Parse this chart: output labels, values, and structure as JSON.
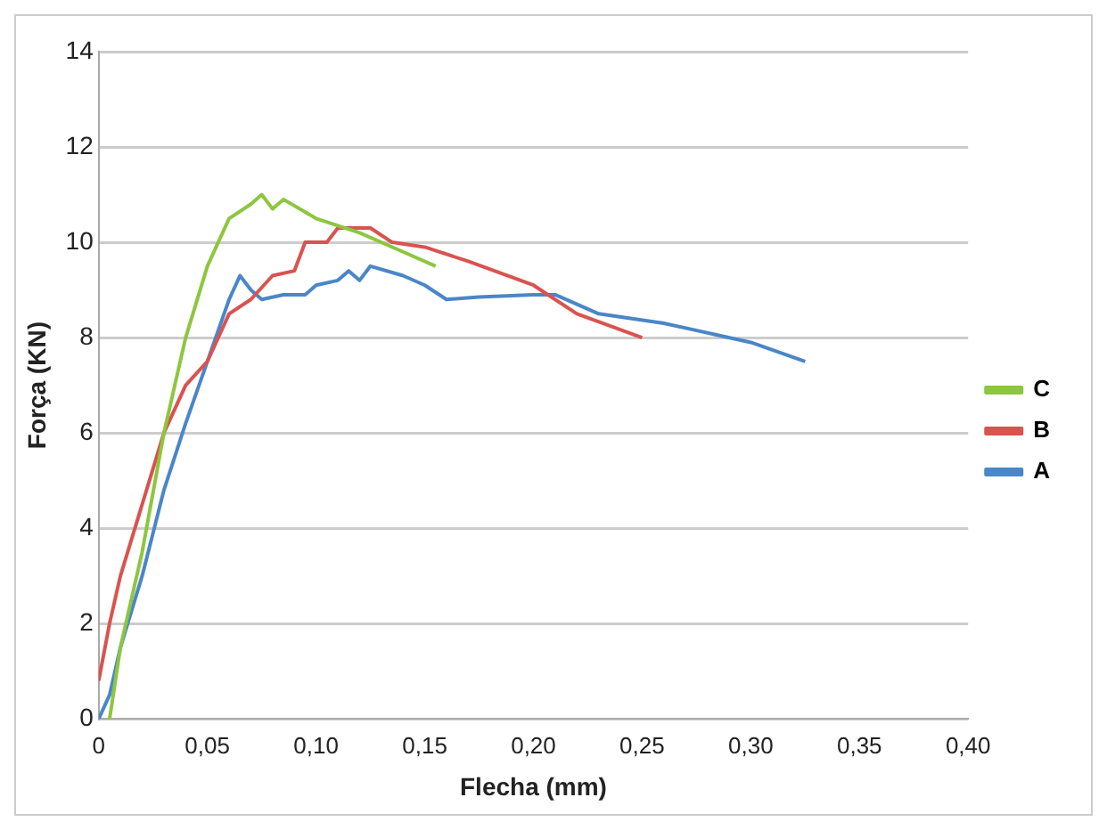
{
  "chart_data": {
    "type": "line",
    "xlabel": "Flecha (mm)",
    "ylabel": "Força (KN)",
    "xlim": [
      0,
      0.4
    ],
    "xticks": [
      0,
      {
        "value": 0.05,
        "label": "0,05"
      },
      {
        "value": 0.1,
        "label": "0,10"
      },
      {
        "value": 0.15,
        "label": "0,15"
      },
      {
        "value": 0.2,
        "label": "0,20"
      },
      {
        "value": 0.25,
        "label": "0,25"
      },
      {
        "value": 0.3,
        "label": "0,30"
      },
      {
        "value": 0.35,
        "label": "0,35"
      },
      {
        "value": 0.4,
        "label": "0,40"
      }
    ],
    "ylim": [
      0,
      14
    ],
    "yticks": [
      0,
      2,
      4,
      6,
      8,
      10,
      12,
      14
    ],
    "grid": "y",
    "legend": "right",
    "marker": "none",
    "line_style": "solid",
    "series": [
      {
        "name": "C",
        "color": "#8dc63f",
        "x": [
          0.005,
          0.01,
          0.02,
          0.03,
          0.04,
          0.05,
          0.06,
          0.07,
          0.075,
          0.08,
          0.085,
          0.1,
          0.12,
          0.14,
          0.155
        ],
        "values": [
          0,
          1.5,
          3.5,
          6,
          8,
          9.5,
          10.5,
          10.8,
          11,
          10.7,
          10.9,
          10.5,
          10.2,
          9.8,
          9.5
        ]
      },
      {
        "name": "B",
        "color": "#d9534f",
        "x": [
          0,
          0.005,
          0.01,
          0.02,
          0.03,
          0.04,
          0.05,
          0.06,
          0.07,
          0.08,
          0.09,
          0.095,
          0.105,
          0.11,
          0.125,
          0.135,
          0.15,
          0.17,
          0.2,
          0.22,
          0.25
        ],
        "values": [
          0.8,
          2,
          3,
          4.5,
          6,
          7,
          7.5,
          8.5,
          8.8,
          9.3,
          9.4,
          10,
          10,
          10.3,
          10.3,
          10,
          9.9,
          9.6,
          9.1,
          8.5,
          8
        ]
      },
      {
        "name": "A",
        "color": "#4a86c8",
        "x": [
          0,
          0.005,
          0.01,
          0.02,
          0.03,
          0.04,
          0.05,
          0.06,
          0.065,
          0.07,
          0.075,
          0.085,
          0.095,
          0.1,
          0.11,
          0.115,
          0.12,
          0.125,
          0.14,
          0.15,
          0.16,
          0.175,
          0.2,
          0.21,
          0.23,
          0.26,
          0.3,
          0.325
        ],
        "values": [
          0,
          0.5,
          1.5,
          3,
          4.8,
          6.2,
          7.5,
          8.8,
          9.3,
          9,
          8.8,
          8.9,
          8.9,
          9.1,
          9.2,
          9.4,
          9.2,
          9.5,
          9.3,
          9.1,
          8.8,
          8.85,
          8.9,
          8.9,
          8.5,
          8.3,
          7.9,
          7.5
        ]
      }
    ]
  }
}
